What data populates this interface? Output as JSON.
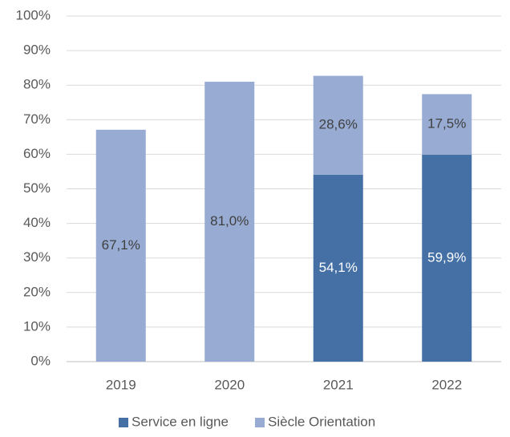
{
  "chart_data": {
    "type": "stacked_bar",
    "categories": [
      "2019",
      "2020",
      "2021",
      "2022"
    ],
    "series": [
      {
        "name": "Service en ligne",
        "color": "#4470a5",
        "label_color": "#ffffff",
        "values": [
          null,
          null,
          54.1,
          59.9
        ],
        "value_labels": [
          null,
          null,
          "54,1%",
          "59,9%"
        ]
      },
      {
        "name": "Siècle Orientation",
        "color": "#97abd3",
        "label_color": "#404040",
        "values": [
          67.1,
          81.0,
          28.6,
          17.5
        ],
        "value_labels": [
          "67,1%",
          "81,0%",
          "28,6%",
          "17,5%"
        ]
      }
    ],
    "ylim": [
      0,
      100
    ],
    "yticks": [
      {
        "value": 0,
        "label": "0%"
      },
      {
        "value": 10,
        "label": "10%"
      },
      {
        "value": 20,
        "label": "20%"
      },
      {
        "value": 30,
        "label": "30%"
      },
      {
        "value": 40,
        "label": "40%"
      },
      {
        "value": 50,
        "label": "50%"
      },
      {
        "value": 60,
        "label": "60%"
      },
      {
        "value": 70,
        "label": "70%"
      },
      {
        "value": 80,
        "label": "80%"
      },
      {
        "value": 90,
        "label": "90%"
      },
      {
        "value": 100,
        "label": "100%"
      }
    ],
    "grid": true,
    "legend": "bottom"
  }
}
